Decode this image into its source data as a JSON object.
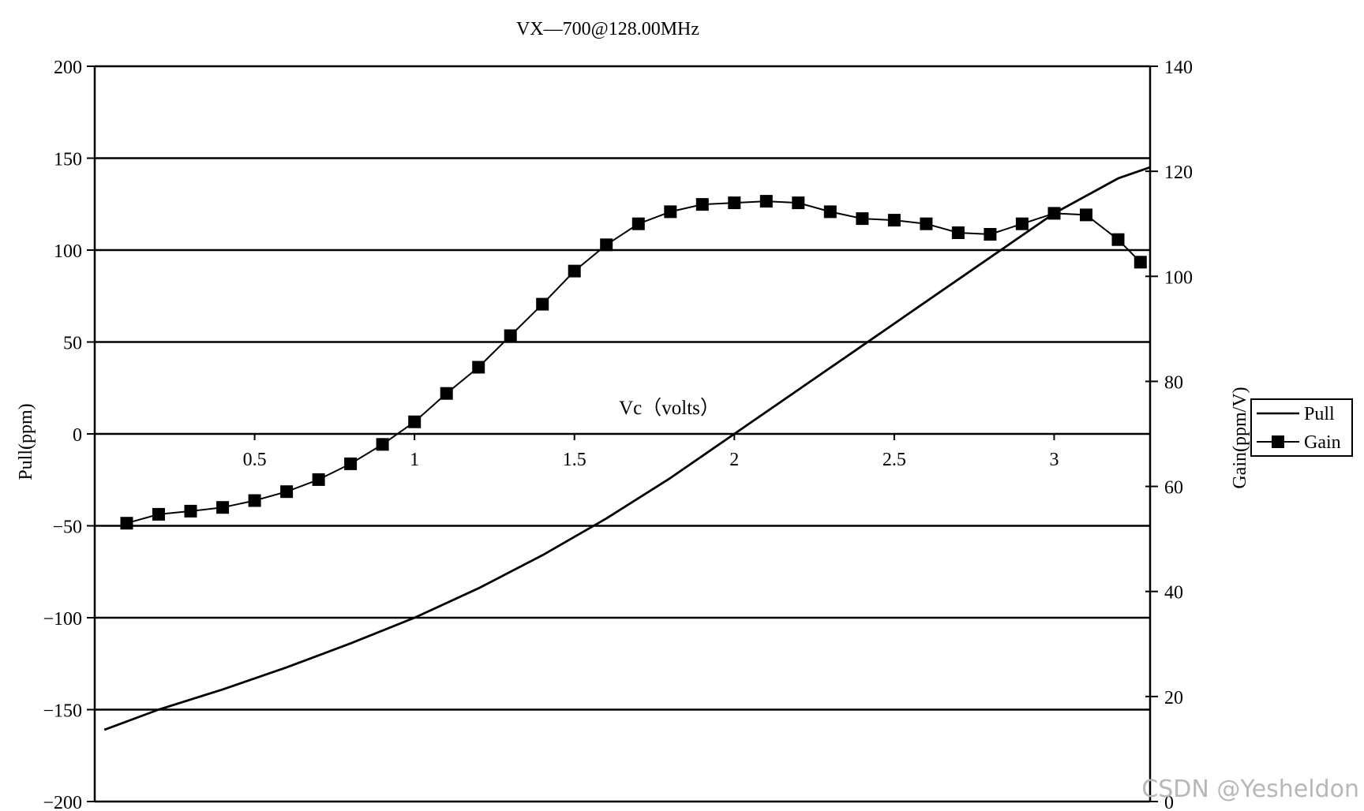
{
  "chart_data": {
    "type": "line",
    "title": "VX—700@128.00MHz",
    "xlabel": "Vc（volts）",
    "ylabel_left": "Pull(ppm)",
    "ylabel_right": "Gain(ppm/V)",
    "xlim": [
      0,
      3.3
    ],
    "ylim_left": [
      -200,
      200
    ],
    "ylim_right": [
      0,
      140
    ],
    "x_ticks": [
      "0.5",
      "1",
      "1.5",
      "2",
      "2.5",
      "3"
    ],
    "y_left_ticks": [
      "200",
      "150",
      "100",
      "50",
      "0",
      "−50",
      "−100",
      "−150",
      "−200"
    ],
    "y_right_ticks": [
      "140",
      "120",
      "100",
      "80",
      "60",
      "40",
      "20",
      "0"
    ],
    "grid": "horizontal",
    "legend_position": "right",
    "series": [
      {
        "name": "Pull",
        "axis": "left",
        "marker": "none",
        "x": [
          0.03,
          0.2,
          0.4,
          0.6,
          0.8,
          1.0,
          1.2,
          1.4,
          1.6,
          1.8,
          2.0,
          2.2,
          2.4,
          2.6,
          2.8,
          3.0,
          3.2,
          3.3
        ],
        "y": [
          -161,
          -150,
          -139,
          -127,
          -114,
          -100,
          -84,
          -66,
          -46,
          -24,
          0,
          24,
          48,
          72,
          96,
          120,
          139,
          145
        ]
      },
      {
        "name": "Gain",
        "axis": "right",
        "marker": "square",
        "x": [
          0.1,
          0.2,
          0.3,
          0.4,
          0.5,
          0.6,
          0.7,
          0.8,
          0.9,
          1.0,
          1.1,
          1.2,
          1.3,
          1.4,
          1.5,
          1.6,
          1.7,
          1.8,
          1.9,
          2.0,
          2.1,
          2.2,
          2.3,
          2.4,
          2.5,
          2.6,
          2.7,
          2.8,
          2.9,
          3.0,
          3.1,
          3.2,
          3.27
        ],
        "y": [
          53,
          54.7,
          55.3,
          56,
          57.3,
          59,
          61.3,
          64.3,
          68,
          72.3,
          77.7,
          82.7,
          88.7,
          94.7,
          101,
          106,
          110,
          112.3,
          113.7,
          114,
          114.3,
          114,
          112.3,
          111,
          110.7,
          110,
          108.3,
          108,
          110,
          112,
          111.7,
          107,
          102.7
        ]
      }
    ]
  },
  "watermark": "CSDN @Yesheldon"
}
